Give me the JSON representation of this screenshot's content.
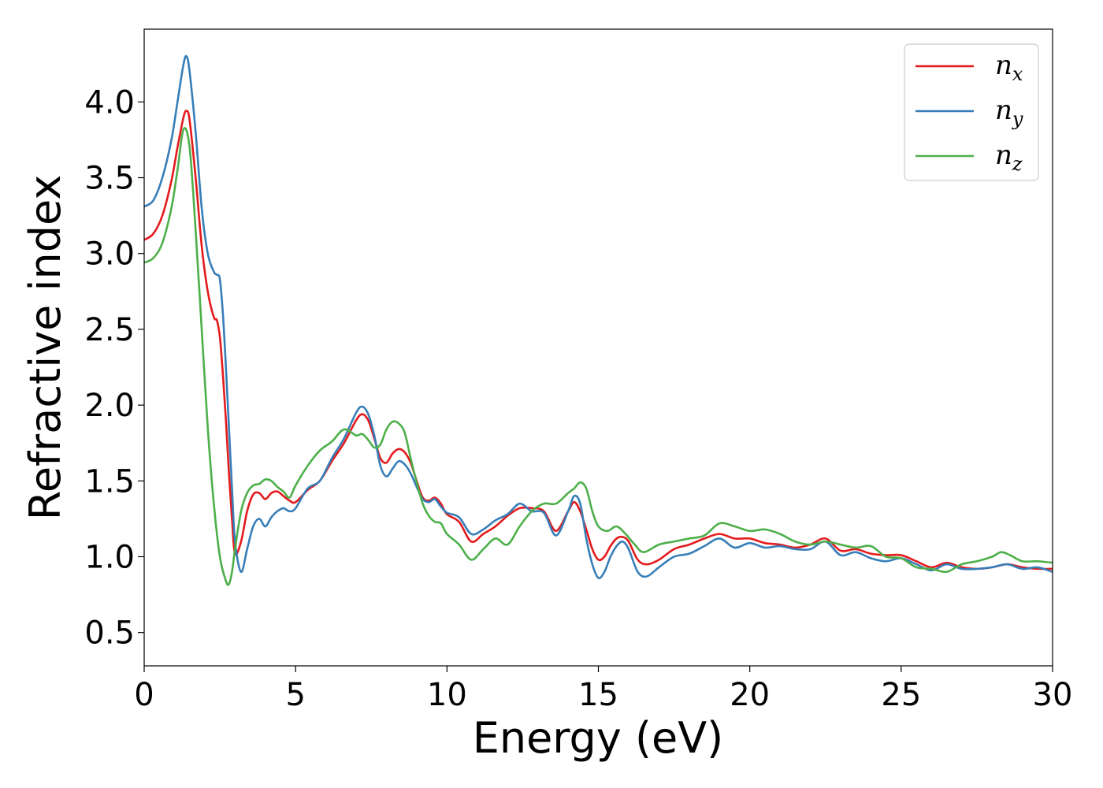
{
  "chart_data": {
    "type": "line",
    "xlabel": "Energy (eV)",
    "ylabel": "Refractive index",
    "xlim": [
      0,
      30
    ],
    "ylim": [
      0.28,
      4.48
    ],
    "xticks": [
      0,
      5,
      10,
      15,
      20,
      25,
      30
    ],
    "yticks": [
      0.5,
      1.0,
      1.5,
      2.0,
      2.5,
      3.0,
      3.5,
      4.0
    ],
    "xtick_labels": [
      "0",
      "5",
      "10",
      "15",
      "20",
      "25",
      "30"
    ],
    "ytick_labels": [
      "0.5",
      "1.0",
      "1.5",
      "2.0",
      "2.5",
      "3.0",
      "3.5",
      "4.0"
    ],
    "grid": false,
    "legend": "top-right",
    "series": [
      {
        "name": "n_x",
        "label_base": "n",
        "label_sub": "x",
        "color": "#e41a1c",
        "x": [
          0,
          0.3,
          0.6,
          0.9,
          1.1,
          1.3,
          1.4,
          1.5,
          1.7,
          1.9,
          2.1,
          2.3,
          2.4,
          2.5,
          2.6,
          2.7,
          2.8,
          2.9,
          3.0,
          3.2,
          3.4,
          3.6,
          3.8,
          4.0,
          4.2,
          4.4,
          4.6,
          4.8,
          5.0,
          5.4,
          5.8,
          6.2,
          6.6,
          7.0,
          7.2,
          7.4,
          7.6,
          7.8,
          8.0,
          8.2,
          8.4,
          8.6,
          8.8,
          9.0,
          9.2,
          9.4,
          9.6,
          9.8,
          10.0,
          10.4,
          10.8,
          11.2,
          11.6,
          12.0,
          12.4,
          12.8,
          13.2,
          13.6,
          14.0,
          14.2,
          14.4,
          14.6,
          14.8,
          15.0,
          15.2,
          15.4,
          15.6,
          15.8,
          16.0,
          16.3,
          16.6,
          17.0,
          17.5,
          18.0,
          18.5,
          19.0,
          19.5,
          20.0,
          20.5,
          21.0,
          21.5,
          22.0,
          22.5,
          23.0,
          23.5,
          24.0,
          24.5,
          25.0,
          25.5,
          26.0,
          26.5,
          27.0,
          27.5,
          28.0,
          28.5,
          29.0,
          29.5,
          30.0
        ],
        "y": [
          3.09,
          3.13,
          3.25,
          3.48,
          3.7,
          3.9,
          3.94,
          3.88,
          3.5,
          3.05,
          2.75,
          2.58,
          2.56,
          2.45,
          2.2,
          1.9,
          1.55,
          1.25,
          1.02,
          1.1,
          1.3,
          1.41,
          1.42,
          1.38,
          1.42,
          1.43,
          1.4,
          1.37,
          1.36,
          1.44,
          1.5,
          1.63,
          1.75,
          1.9,
          1.94,
          1.9,
          1.78,
          1.65,
          1.62,
          1.68,
          1.71,
          1.69,
          1.62,
          1.5,
          1.39,
          1.37,
          1.39,
          1.35,
          1.28,
          1.23,
          1.1,
          1.15,
          1.2,
          1.27,
          1.32,
          1.32,
          1.3,
          1.17,
          1.3,
          1.36,
          1.3,
          1.18,
          1.05,
          0.98,
          1.0,
          1.07,
          1.12,
          1.13,
          1.1,
          0.98,
          0.95,
          0.98,
          1.05,
          1.08,
          1.12,
          1.15,
          1.12,
          1.12,
          1.09,
          1.08,
          1.06,
          1.08,
          1.12,
          1.04,
          1.05,
          1.02,
          1.01,
          1.01,
          0.97,
          0.93,
          0.96,
          0.93,
          0.92,
          0.93,
          0.95,
          0.93,
          0.92,
          0.92
        ]
      },
      {
        "name": "n_y",
        "label_base": "n",
        "label_sub": "y",
        "color": "#377eb8",
        "x": [
          0,
          0.3,
          0.6,
          0.9,
          1.1,
          1.3,
          1.4,
          1.5,
          1.7,
          1.9,
          2.1,
          2.3,
          2.4,
          2.5,
          2.6,
          2.7,
          2.8,
          2.9,
          3.0,
          3.2,
          3.4,
          3.6,
          3.8,
          4.0,
          4.2,
          4.4,
          4.6,
          4.8,
          5.0,
          5.4,
          5.8,
          6.2,
          6.6,
          7.0,
          7.2,
          7.4,
          7.6,
          7.8,
          8.0,
          8.2,
          8.4,
          8.6,
          8.8,
          9.0,
          9.2,
          9.4,
          9.6,
          9.8,
          10.0,
          10.4,
          10.8,
          11.2,
          11.6,
          12.0,
          12.4,
          12.8,
          13.2,
          13.6,
          14.0,
          14.2,
          14.4,
          14.6,
          14.8,
          15.0,
          15.2,
          15.4,
          15.6,
          15.8,
          16.0,
          16.3,
          16.6,
          17.0,
          17.5,
          18.0,
          18.5,
          19.0,
          19.5,
          20.0,
          20.5,
          21.0,
          21.5,
          22.0,
          22.5,
          23.0,
          23.5,
          24.0,
          24.5,
          25.0,
          25.5,
          26.0,
          26.5,
          27.0,
          27.5,
          28.0,
          28.5,
          29.0,
          29.5,
          30.0
        ],
        "y": [
          3.31,
          3.35,
          3.5,
          3.75,
          4.0,
          4.25,
          4.3,
          4.2,
          3.8,
          3.3,
          3.0,
          2.88,
          2.86,
          2.83,
          2.6,
          2.25,
          1.85,
          1.45,
          1.1,
          0.9,
          1.05,
          1.2,
          1.25,
          1.2,
          1.26,
          1.3,
          1.32,
          1.3,
          1.32,
          1.45,
          1.5,
          1.65,
          1.78,
          1.95,
          1.99,
          1.94,
          1.8,
          1.6,
          1.53,
          1.58,
          1.63,
          1.61,
          1.55,
          1.46,
          1.38,
          1.36,
          1.38,
          1.33,
          1.29,
          1.26,
          1.15,
          1.18,
          1.24,
          1.28,
          1.35,
          1.3,
          1.29,
          1.14,
          1.3,
          1.4,
          1.35,
          1.12,
          0.95,
          0.86,
          0.9,
          1.0,
          1.07,
          1.1,
          1.05,
          0.9,
          0.87,
          0.93,
          1.0,
          1.02,
          1.07,
          1.12,
          1.06,
          1.09,
          1.06,
          1.07,
          1.05,
          1.05,
          1.1,
          1.01,
          1.03,
          0.99,
          0.97,
          0.99,
          0.95,
          0.91,
          0.95,
          0.92,
          0.92,
          0.93,
          0.95,
          0.92,
          0.93,
          0.9
        ]
      },
      {
        "name": "n_z",
        "label_base": "n",
        "label_sub": "z",
        "color": "#4daf4a",
        "x": [
          0,
          0.3,
          0.6,
          0.9,
          1.1,
          1.3,
          1.5,
          1.7,
          1.9,
          2.1,
          2.3,
          2.5,
          2.7,
          2.8,
          2.9,
          3.0,
          3.2,
          3.4,
          3.6,
          3.8,
          4.0,
          4.2,
          4.4,
          4.6,
          4.8,
          5.0,
          5.4,
          5.8,
          6.2,
          6.6,
          7.0,
          7.2,
          7.4,
          7.6,
          7.8,
          8.0,
          8.2,
          8.4,
          8.6,
          8.8,
          9.0,
          9.2,
          9.4,
          9.6,
          9.8,
          10.0,
          10.4,
          10.8,
          11.2,
          11.6,
          12.0,
          12.4,
          12.8,
          13.2,
          13.6,
          14.0,
          14.2,
          14.4,
          14.6,
          14.8,
          15.0,
          15.3,
          15.6,
          15.9,
          16.2,
          16.5,
          17.0,
          17.5,
          18.0,
          18.5,
          19.0,
          19.5,
          20.0,
          20.5,
          21.0,
          21.5,
          22.0,
          22.5,
          23.0,
          23.5,
          24.0,
          24.5,
          25.0,
          25.5,
          26.0,
          26.5,
          27.0,
          27.5,
          28.0,
          28.3,
          28.6,
          29.0,
          29.5,
          30.0
        ],
        "y": [
          2.94,
          2.97,
          3.07,
          3.3,
          3.55,
          3.82,
          3.7,
          3.15,
          2.5,
          1.85,
          1.35,
          1.0,
          0.84,
          0.82,
          0.9,
          1.05,
          1.3,
          1.42,
          1.47,
          1.48,
          1.51,
          1.5,
          1.46,
          1.43,
          1.39,
          1.47,
          1.6,
          1.7,
          1.76,
          1.84,
          1.8,
          1.81,
          1.77,
          1.72,
          1.74,
          1.84,
          1.89,
          1.88,
          1.82,
          1.65,
          1.49,
          1.35,
          1.27,
          1.23,
          1.22,
          1.15,
          1.08,
          0.98,
          1.05,
          1.12,
          1.08,
          1.2,
          1.3,
          1.35,
          1.35,
          1.42,
          1.45,
          1.49,
          1.45,
          1.3,
          1.2,
          1.17,
          1.2,
          1.15,
          1.08,
          1.03,
          1.08,
          1.1,
          1.12,
          1.14,
          1.22,
          1.2,
          1.17,
          1.18,
          1.15,
          1.1,
          1.08,
          1.1,
          1.08,
          1.06,
          1.07,
          1.0,
          0.99,
          0.93,
          0.92,
          0.9,
          0.95,
          0.97,
          1.0,
          1.03,
          1.01,
          0.97,
          0.97,
          0.96
        ]
      }
    ]
  }
}
